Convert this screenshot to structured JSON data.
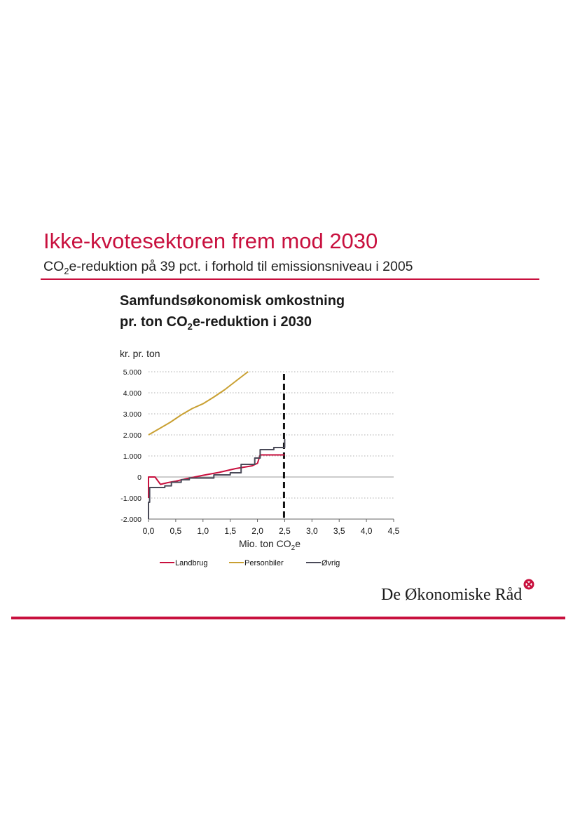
{
  "slide": {
    "title": "Ikke-kvotesektoren frem mod 2030",
    "subtitle_pre": "CO",
    "subtitle_sub": "2",
    "subtitle_post": "e-reduktion på 39 pct. i forhold til emissionsniveau i 2005"
  },
  "logo": {
    "text": "De Økonomiske Råd"
  },
  "colors": {
    "accent": "#c8103e",
    "landbrug": "#c8103e",
    "personbiler": "#c9a032",
    "ovrig": "#4a4a58"
  },
  "chart_data": {
    "type": "line",
    "title_line1": "Samfundsøkonomisk omkostning",
    "title_line2_pre": "pr. ton CO",
    "title_line2_sub": "2",
    "title_line2_post": "e-reduktion i 2030",
    "ylabel": "kr. pr. ton",
    "xlabel_pre": "Mio. ton CO",
    "xlabel_sub": "2",
    "xlabel_post": "e",
    "xlim": [
      0,
      4.5
    ],
    "ylim": [
      -2000,
      5000
    ],
    "xticks": [
      "0,0",
      "0,5",
      "1,0",
      "1,5",
      "2,0",
      "2,5",
      "3,0",
      "3,5",
      "4,0",
      "4,5"
    ],
    "yticks": [
      "5.000",
      "4.000",
      "3.000",
      "2.000",
      "1.000",
      "0",
      "-1.000",
      "-2.000"
    ],
    "target_line_x": 2.5,
    "grid": "horizontal dotted",
    "legend_position": "bottom",
    "series": [
      {
        "name": "Landbrug",
        "points": [
          [
            0,
            -1000
          ],
          [
            0,
            0
          ],
          [
            0.12,
            0
          ],
          [
            0.22,
            -350
          ],
          [
            0.35,
            -270
          ],
          [
            0.5,
            -200
          ],
          [
            0.7,
            -80
          ],
          [
            1.0,
            80
          ],
          [
            1.3,
            220
          ],
          [
            1.6,
            400
          ],
          [
            1.9,
            530
          ],
          [
            2.0,
            650
          ],
          [
            2.05,
            1050
          ],
          [
            2.5,
            1050
          ]
        ]
      },
      {
        "name": "Personbiler",
        "points": [
          [
            0,
            2000
          ],
          [
            0.2,
            2300
          ],
          [
            0.4,
            2600
          ],
          [
            0.6,
            2950
          ],
          [
            0.8,
            3250
          ],
          [
            1.0,
            3480
          ],
          [
            1.2,
            3800
          ],
          [
            1.4,
            4150
          ],
          [
            1.6,
            4550
          ],
          [
            1.8,
            4950
          ],
          [
            1.83,
            5000
          ]
        ]
      },
      {
        "name": "Øvrig",
        "points": [
          [
            0,
            -2000
          ],
          [
            0,
            -1200
          ],
          [
            0.02,
            -1200
          ],
          [
            0.02,
            -500
          ],
          [
            0.3,
            -500
          ],
          [
            0.3,
            -420
          ],
          [
            0.42,
            -420
          ],
          [
            0.42,
            -250
          ],
          [
            0.6,
            -250
          ],
          [
            0.6,
            -130
          ],
          [
            0.75,
            -130
          ],
          [
            0.75,
            -50
          ],
          [
            1.2,
            -50
          ],
          [
            1.2,
            100
          ],
          [
            1.5,
            100
          ],
          [
            1.5,
            200
          ],
          [
            1.7,
            200
          ],
          [
            1.7,
            600
          ],
          [
            1.95,
            600
          ],
          [
            1.95,
            900
          ],
          [
            2.05,
            900
          ],
          [
            2.05,
            1300
          ],
          [
            2.3,
            1300
          ],
          [
            2.3,
            1400
          ],
          [
            2.5,
            1400
          ],
          [
            2.5,
            1800
          ]
        ]
      }
    ]
  }
}
